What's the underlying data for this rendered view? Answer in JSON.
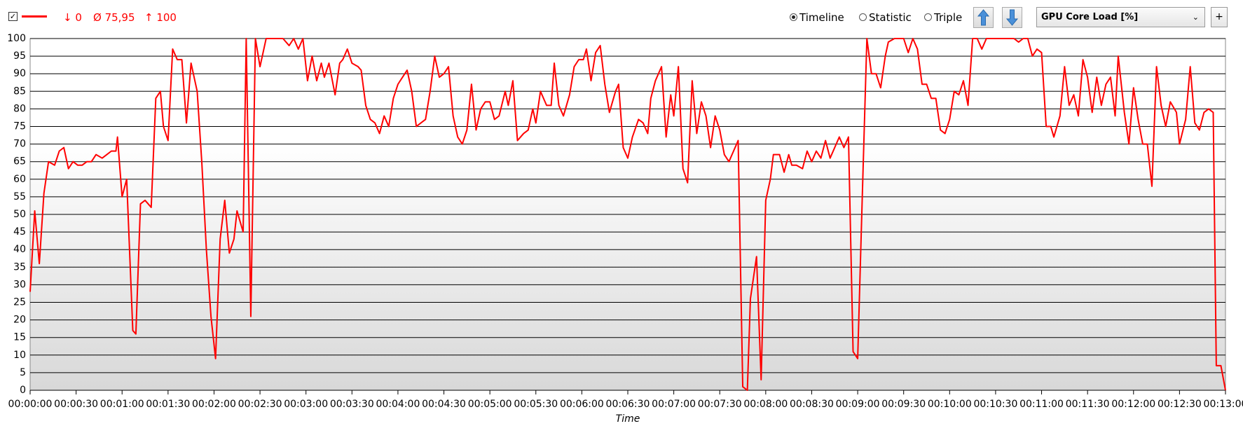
{
  "toolbar": {
    "min": "↓ 0",
    "avg": "Ø 75,95",
    "max": "↑ 100",
    "modes": [
      "Timeline",
      "Statistic",
      "Triple"
    ],
    "selected_mode": 0,
    "sensor": "GPU Core Load [%]",
    "add": "+"
  },
  "chart_data": {
    "type": "line",
    "xlabel": "Time",
    "x": [
      0,
      3,
      6,
      9,
      12,
      16,
      19,
      22,
      25,
      28,
      31,
      34,
      37,
      40,
      43,
      47,
      50,
      53,
      56,
      57,
      60,
      63,
      67,
      69,
      72,
      75,
      79,
      82,
      85,
      87,
      90,
      93,
      96,
      99,
      102,
      105,
      109,
      112,
      115,
      118,
      121,
      124,
      127,
      130,
      133,
      135,
      139,
      141,
      144,
      147,
      150,
      154,
      157,
      160,
      163,
      165,
      169,
      172,
      175,
      178,
      181,
      184,
      187,
      190,
      192,
      195,
      199,
      202,
      204,
      207,
      210,
      214,
      216,
      219,
      222,
      225,
      228,
      231,
      234,
      237,
      240,
      243,
      246,
      249,
      252,
      255,
      258,
      261,
      264,
      267,
      270,
      273,
      276,
      279,
      282,
      285,
      288,
      291,
      294,
      297,
      300,
      303,
      306,
      310,
      312,
      315,
      318,
      322,
      325,
      328,
      330,
      333,
      337,
      340,
      342,
      345,
      348,
      352,
      355,
      358,
      361,
      363,
      366,
      369,
      372,
      375,
      378,
      382,
      384,
      387,
      390,
      393,
      397,
      400,
      403,
      405,
      408,
      412,
      415,
      418,
      420,
      423,
      426,
      429,
      432,
      435,
      438,
      441,
      444,
      447,
      450,
      453,
      456,
      459,
      462,
      465,
      468,
      470,
      474,
      477,
      480,
      483,
      485,
      489,
      492,
      495,
      497,
      500,
      504,
      507,
      510,
      513,
      516,
      519,
      522,
      525,
      528,
      531,
      534,
      537,
      540,
      543,
      546,
      549,
      552,
      555,
      558,
      560,
      564,
      567,
      570,
      573,
      576,
      579,
      582,
      585,
      588,
      591,
      594,
      597,
      600,
      603,
      606,
      609,
      612,
      615,
      618,
      621,
      624,
      627,
      630,
      633,
      636,
      639,
      642,
      645,
      648,
      651,
      654,
      657,
      660,
      663,
      666,
      668,
      672,
      675,
      678,
      681,
      684,
      687,
      690,
      693,
      696,
      699,
      702,
      705,
      708,
      710,
      714,
      717,
      720,
      723,
      726,
      729,
      732,
      735,
      738,
      741,
      744,
      748,
      750,
      754,
      757,
      760,
      763,
      766,
      769,
      772,
      774,
      777,
      780
    ],
    "series": [
      {
        "color": "#ff0000",
        "values": [
          28,
          51,
          36,
          56,
          65,
          64,
          68,
          69,
          63,
          65,
          64,
          64,
          65,
          65,
          67,
          66,
          67,
          68,
          68,
          72,
          55,
          60,
          17,
          16,
          53,
          54,
          52,
          83,
          85,
          75,
          71,
          97,
          94,
          94,
          76,
          93,
          85,
          65,
          40,
          21,
          9,
          43,
          54,
          39,
          43,
          51,
          45,
          100,
          21,
          100,
          92,
          100,
          100,
          100,
          100,
          100,
          98,
          100,
          97,
          100,
          88,
          95,
          88,
          93,
          89,
          93,
          84,
          93,
          94,
          97,
          93,
          92,
          91,
          81,
          77,
          76,
          73,
          78,
          75,
          83,
          87,
          89,
          91,
          85,
          75,
          76,
          77,
          85,
          95,
          89,
          90,
          92,
          78,
          72,
          70,
          74,
          87,
          74,
          80,
          82,
          82,
          77,
          78,
          85,
          81,
          88,
          71,
          73,
          74,
          80,
          76,
          85,
          81,
          81,
          93,
          81,
          78,
          84,
          92,
          94,
          94,
          97,
          88,
          96,
          98,
          87,
          79,
          85,
          87,
          69,
          66,
          72,
          77,
          76,
          73,
          83,
          88,
          92,
          72,
          84,
          78,
          92,
          63,
          59,
          88,
          73,
          82,
          78,
          69,
          78,
          74,
          67,
          65,
          68,
          71,
          1,
          0,
          26,
          38,
          3,
          54,
          60,
          67,
          67,
          62,
          67,
          64,
          64,
          63,
          68,
          65,
          68,
          66,
          71,
          66,
          69,
          72,
          69,
          72,
          11,
          9,
          55,
          100,
          90,
          90,
          86,
          95,
          99,
          100,
          100,
          100,
          96,
          100,
          97,
          87,
          87,
          83,
          83,
          74,
          73,
          77,
          85,
          84,
          88,
          81,
          100,
          100,
          97,
          100,
          100,
          100,
          100,
          100,
          100,
          100,
          99,
          100,
          100,
          95,
          97,
          96,
          75,
          75,
          72,
          78,
          92,
          81,
          84,
          78,
          94,
          89,
          79,
          89,
          81,
          87,
          89,
          78,
          95,
          79,
          70,
          86,
          77,
          70,
          70,
          58,
          92,
          81,
          75,
          82,
          79,
          70,
          77,
          92,
          76,
          74,
          79,
          80,
          79,
          7,
          7,
          0
        ]
      }
    ],
    "xlim": [
      0,
      780
    ],
    "xticks": [
      {
        "value": 0,
        "label": "00:00:00"
      },
      {
        "value": 30,
        "label": "00:00:30"
      },
      {
        "value": 60,
        "label": "00:01:00"
      },
      {
        "value": 90,
        "label": "00:01:30"
      },
      {
        "value": 120,
        "label": "00:02:00"
      },
      {
        "value": 150,
        "label": "00:02:30"
      },
      {
        "value": 180,
        "label": "00:03:00"
      },
      {
        "value": 210,
        "label": "00:03:30"
      },
      {
        "value": 240,
        "label": "00:04:00"
      },
      {
        "value": 270,
        "label": "00:04:30"
      },
      {
        "value": 300,
        "label": "00:05:00"
      },
      {
        "value": 330,
        "label": "00:05:30"
      },
      {
        "value": 360,
        "label": "00:06:00"
      },
      {
        "value": 390,
        "label": "00:06:30"
      },
      {
        "value": 420,
        "label": "00:07:00"
      },
      {
        "value": 450,
        "label": "00:07:30"
      },
      {
        "value": 480,
        "label": "00:08:00"
      },
      {
        "value": 510,
        "label": "00:08:30"
      },
      {
        "value": 540,
        "label": "00:09:00"
      },
      {
        "value": 570,
        "label": "00:09:30"
      },
      {
        "value": 600,
        "label": "00:10:00"
      },
      {
        "value": 630,
        "label": "00:10:30"
      },
      {
        "value": 660,
        "label": "00:11:00"
      },
      {
        "value": 690,
        "label": "00:11:30"
      },
      {
        "value": 720,
        "label": "00:12:00"
      },
      {
        "value": 750,
        "label": "00:12:30"
      },
      {
        "value": 780,
        "label": "00:13:00"
      }
    ],
    "ylim": [
      0,
      100
    ],
    "yticks": [
      0,
      5,
      10,
      15,
      20,
      25,
      30,
      35,
      40,
      45,
      50,
      55,
      60,
      65,
      70,
      75,
      80,
      85,
      90,
      95,
      100
    ],
    "grid": true
  }
}
